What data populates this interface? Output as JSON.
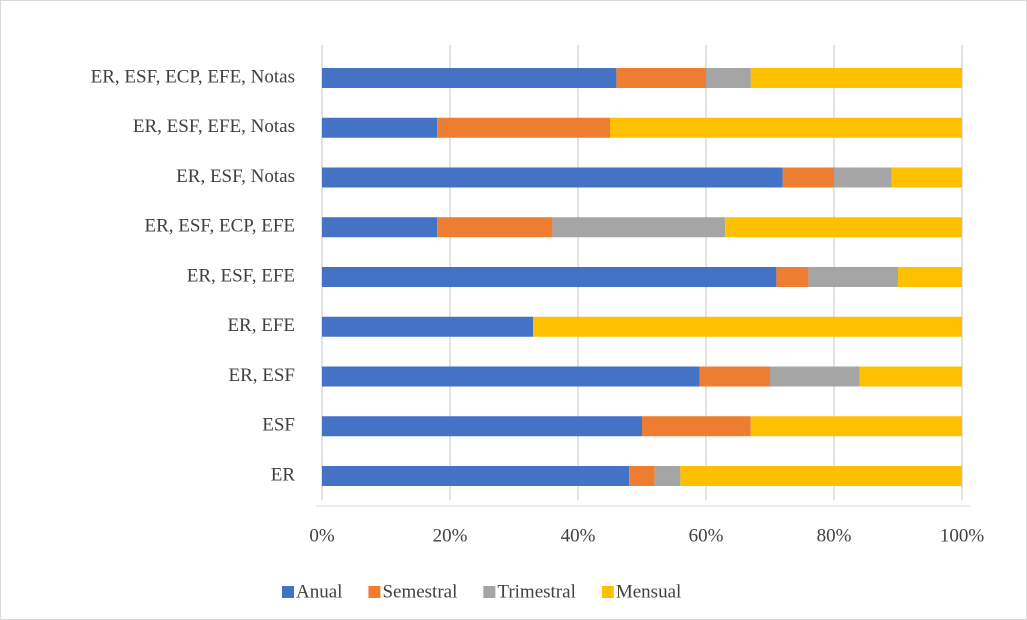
{
  "chart_data": {
    "type": "stacked_bar_horizontal",
    "categories": [
      "ER",
      "ESF",
      "ER, ESF",
      "ER, EFE",
      "ER, ESF, EFE",
      "ER, ESF, ECP, EFE",
      "ER, ESF, Notas",
      "ER, ESF, EFE, Notas",
      "ER, ESF, ECP, EFE, Notas"
    ],
    "series": [
      {
        "name": "Anual",
        "color": "#4472c4",
        "values": [
          48,
          50,
          59,
          33,
          71,
          18,
          72,
          18,
          46
        ]
      },
      {
        "name": "Semestral",
        "color": "#ed7d31",
        "values": [
          4,
          17,
          11,
          0,
          5,
          18,
          8,
          27,
          14
        ]
      },
      {
        "name": "Trimestral",
        "color": "#a5a5a5",
        "values": [
          4,
          0,
          14,
          0,
          14,
          27,
          9,
          0,
          7
        ]
      },
      {
        "name": "Mensual",
        "color": "#ffc000",
        "values": [
          44,
          33,
          16,
          67,
          10,
          37,
          11,
          55,
          33
        ]
      }
    ],
    "xlim": [
      0,
      100
    ],
    "xticks": [
      {
        "value": 0,
        "label": "0%"
      },
      {
        "value": 20,
        "label": "20%"
      },
      {
        "value": 40,
        "label": "40%"
      },
      {
        "value": 60,
        "label": "60%"
      },
      {
        "value": 80,
        "label": "80%"
      },
      {
        "value": 100,
        "label": "100%"
      }
    ],
    "grid": true,
    "legend": "bottom"
  }
}
